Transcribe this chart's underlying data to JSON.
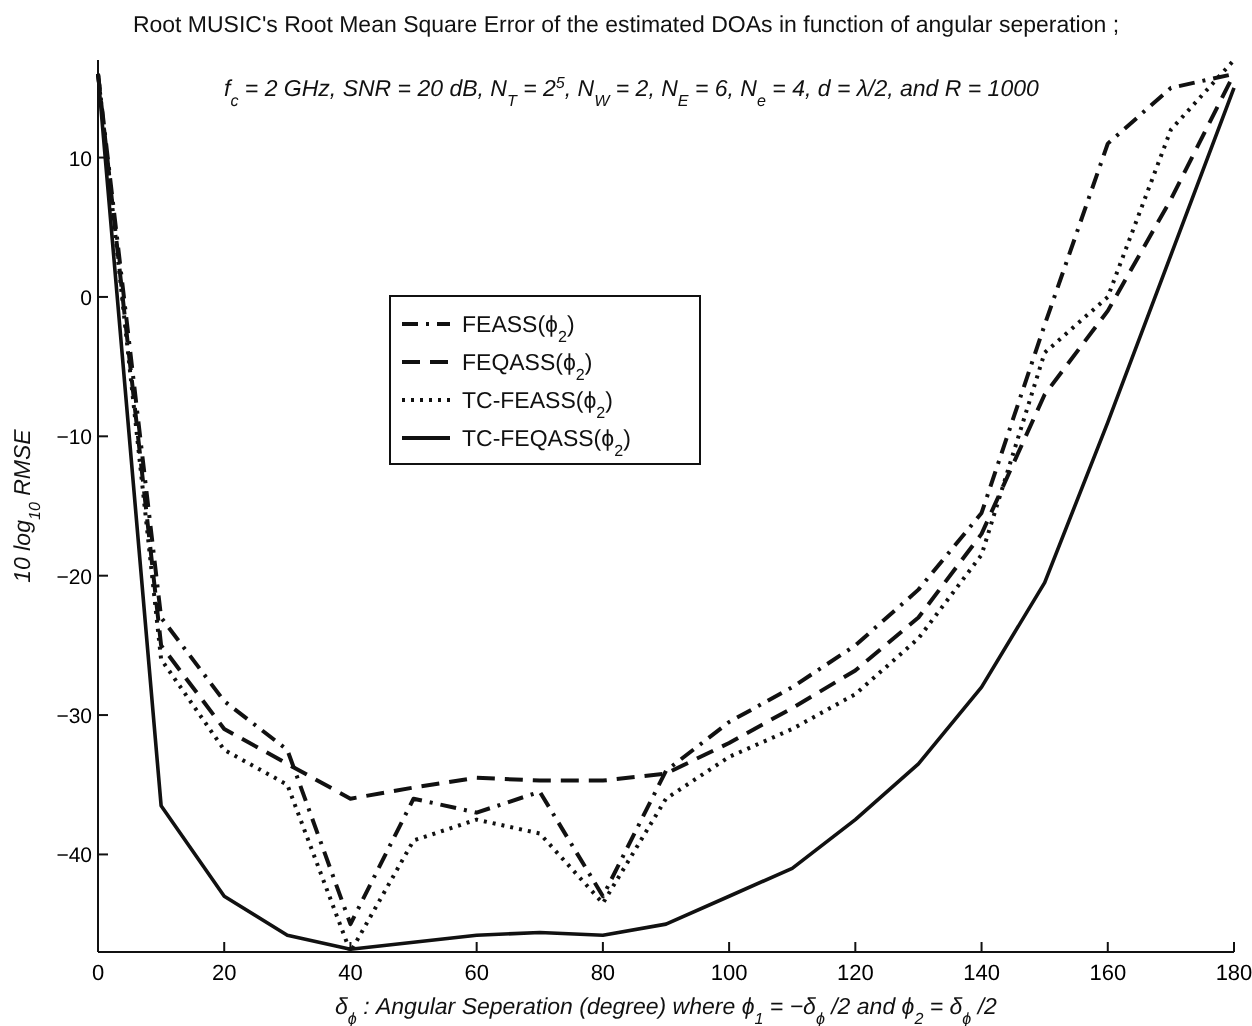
{
  "chart_data": {
    "type": "line",
    "title": "Root MUSIC's Root Mean Square Error of the estimated DOAs in function of angular seperation ;",
    "subtitle": "f$_{c}$ = 2 GHz,  SNR = 20 dB, N$_{T}$ = 2$^{5}$, N$_{W}$ = 2, N$_{E}$ = 6, N$_{e}$ = 4,  d = λ/2, and R = 1000",
    "xlabel": "δ$_{ϕ}$ : Angular Seperation (degree) where ϕ$_{1}$ =  −δ$_{ϕ}$ /2 and ϕ$_{2}$ =  δ$_{ϕ}$ /2",
    "ylabel": "10 log$_{10}$ RMSE",
    "x": [
      0,
      10,
      20,
      30,
      40,
      50,
      60,
      70,
      80,
      90,
      100,
      110,
      120,
      130,
      140,
      150,
      160,
      170,
      180
    ],
    "series": [
      {
        "name": "FEASS(ϕ$_{2}$)",
        "color": "#111111",
        "line_style": "dashdot",
        "values": [
          16,
          -23,
          -29,
          -32.5,
          -45,
          -36,
          -37,
          -35.5,
          -43,
          -34,
          -30.5,
          -28,
          -25,
          -21,
          -15.5,
          -2,
          11,
          15,
          16
        ]
      },
      {
        "name": "FEQASS(ϕ$_{2}$)",
        "color": "#111111",
        "line_style": "dashed",
        "values": [
          16,
          -25,
          -31,
          -33.5,
          -36,
          -35.2,
          -34.5,
          -34.7,
          -34.7,
          -34.2,
          -32,
          -29.5,
          -26.8,
          -23,
          -17,
          -7,
          -1,
          7,
          16
        ]
      },
      {
        "name": "TC-FEASS(ϕ$_{2}$)",
        "color": "#111111",
        "line_style": "dotted",
        "values": [
          16,
          -26,
          -32.5,
          -35,
          -47,
          -39,
          -37.5,
          -38.5,
          -43.5,
          -36,
          -33,
          -31,
          -28.5,
          -24.5,
          -18.5,
          -4,
          0,
          12,
          17
        ]
      },
      {
        "name": "TC-FEQASS(ϕ$_{2}$)",
        "color": "#111111",
        "line_style": "solid",
        "values": [
          16,
          -36.5,
          -43,
          -45.8,
          -46.8,
          -46.3,
          -45.8,
          -45.6,
          -45.8,
          -45,
          -43,
          -41,
          -37.5,
          -33.5,
          -28,
          -20.5,
          -9,
          3,
          15
        ]
      }
    ],
    "xlim": [
      0,
      180
    ],
    "ylim": [
      -47,
      17
    ],
    "xticks": [
      0,
      20,
      40,
      60,
      80,
      100,
      120,
      140,
      160,
      180
    ],
    "yticks": [
      -40,
      -30,
      -20,
      -10,
      0,
      10
    ],
    "legend": "top center",
    "grid": false,
    "marker": "none"
  }
}
